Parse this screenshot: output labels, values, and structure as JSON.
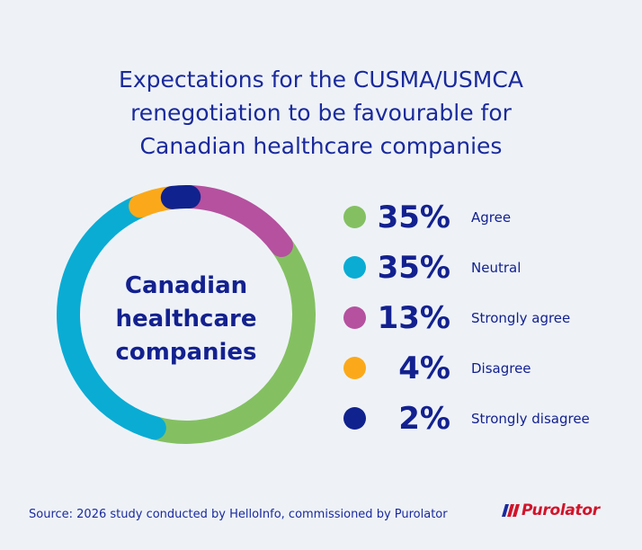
{
  "title": "Expectations for the CUSMA/USMCA renegotiation to be favourable for Canadian healthcare companies",
  "title_lines": [
    "Expectations for the CUSMA/USMCA",
    "renegotiation to be favourable for",
    "Canadian healthcare companies"
  ],
  "center_label": [
    "Canadian",
    "healthcare",
    "companies"
  ],
  "chart_data": {
    "type": "pie",
    "variant": "donut",
    "title": "Expectations for the CUSMA/USMCA renegotiation to be favourable for Canadian healthcare companies",
    "center_text": "Canadian healthcare companies",
    "segment_order": [
      "Agree",
      "Neutral",
      "Disagree",
      "Strongly disagree",
      "Strongly agree"
    ],
    "categories": [
      "Agree",
      "Neutral",
      "Strongly agree",
      "Disagree",
      "Strongly disagree"
    ],
    "values": [
      35,
      35,
      13,
      4,
      2
    ],
    "value_labels": [
      "35%",
      "35%",
      "13%",
      "4%",
      "2%"
    ],
    "colors": [
      "#84c062",
      "#0aacd4",
      "#b5519f",
      "#fba91a",
      "#10228e"
    ],
    "legend_position": "right"
  },
  "source": "Source: 2026 study conducted by HelloInfo, commissioned by Purolator",
  "logo": {
    "text": "Purolator",
    "color": "#d2142a"
  }
}
